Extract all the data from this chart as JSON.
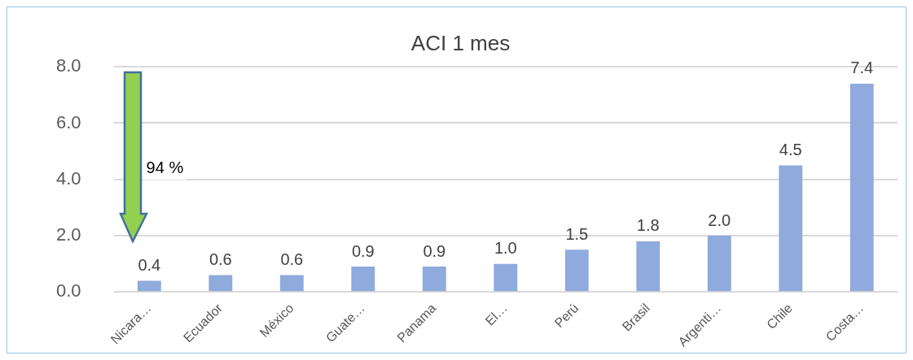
{
  "chart_data": {
    "type": "bar",
    "title": "ACI 1 mes",
    "categories": [
      "Nicara…",
      "Ecuador",
      "México",
      "Guate…",
      "Panama",
      "El…",
      "Perú",
      "Brasil",
      "Argenti…",
      "Chile",
      "Costa…"
    ],
    "values": [
      0.4,
      0.6,
      0.6,
      0.9,
      0.9,
      1.0,
      1.5,
      1.8,
      2.0,
      4.5,
      7.4
    ],
    "value_labels": [
      "0.4",
      "0.6",
      "0.6",
      "0.9",
      "0.9",
      "1.0",
      "1.5",
      "1.8",
      "2.0",
      "4.5",
      "7.4"
    ],
    "color": "#8faadc",
    "ylim": [
      0,
      8
    ],
    "yticks": [
      {
        "value": 0,
        "label": "0.0"
      },
      {
        "value": 2,
        "label": "2.0"
      },
      {
        "value": 4,
        "label": "4.0"
      },
      {
        "value": 6,
        "label": "6.0"
      },
      {
        "value": 8,
        "label": "8.0"
      }
    ],
    "grid": "y",
    "legend": false,
    "annotations": [
      "94 %"
    ]
  }
}
